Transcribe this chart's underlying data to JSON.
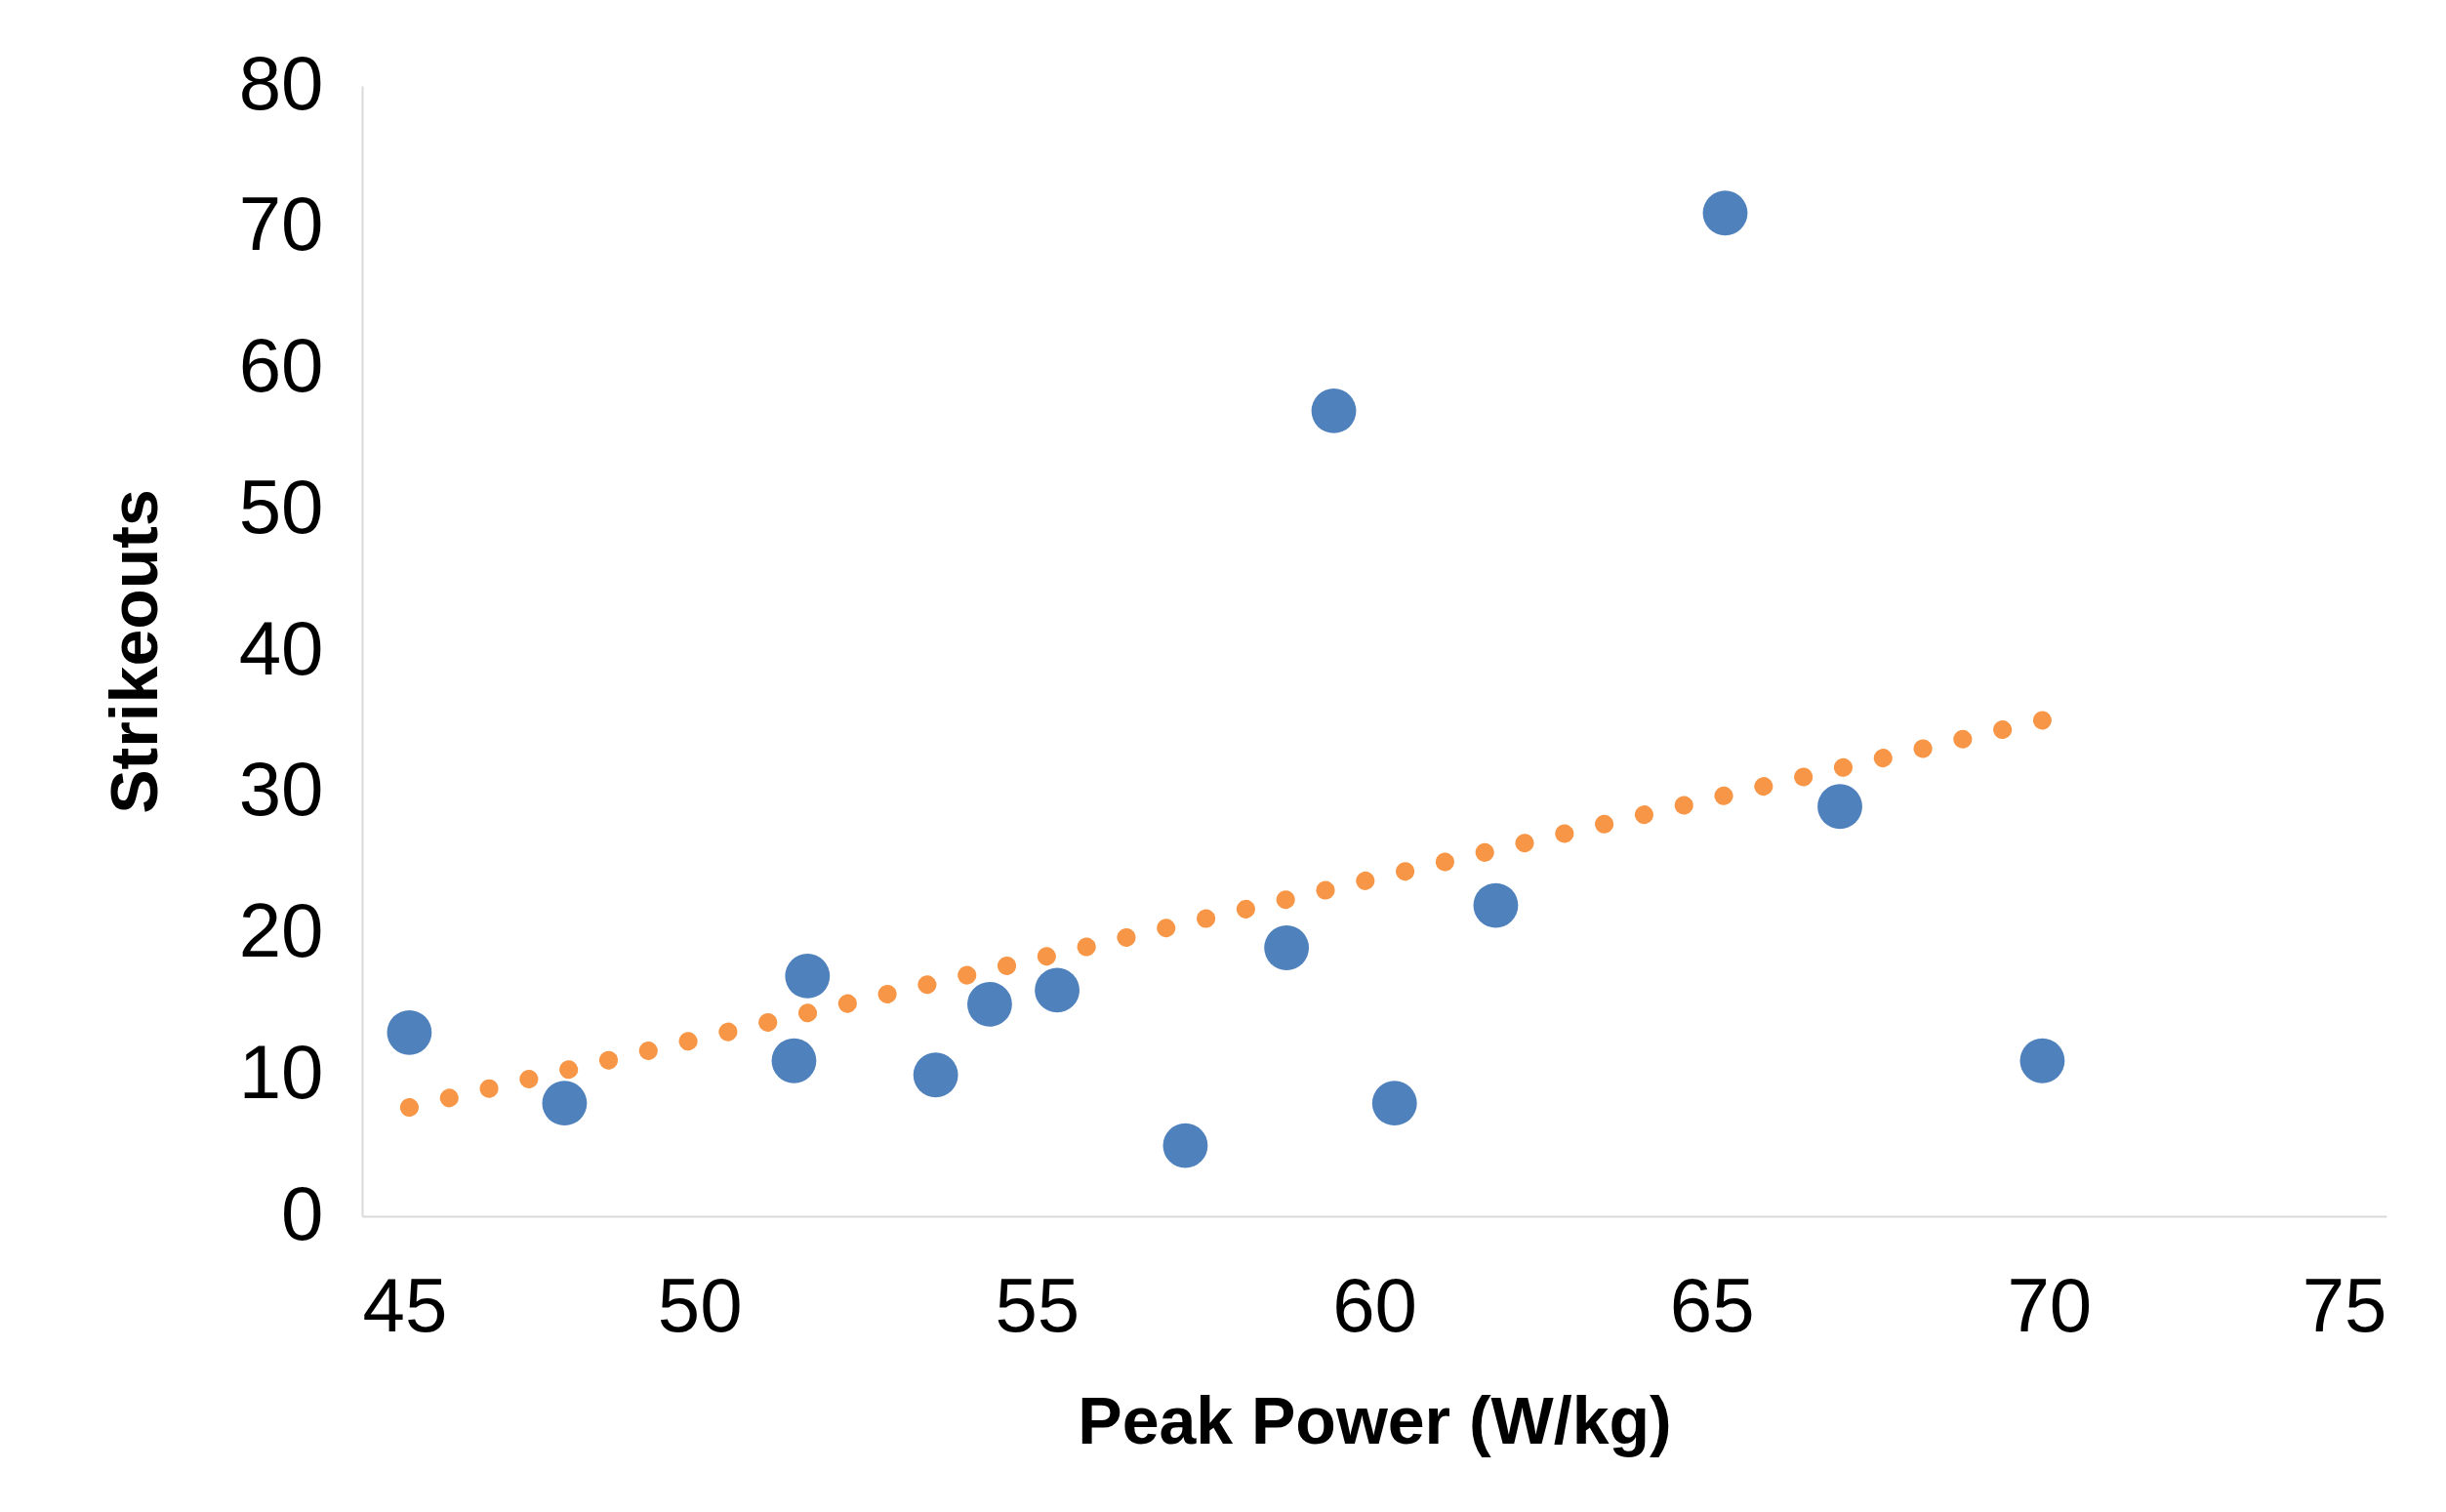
{
  "chart_data": {
    "type": "scatter",
    "xlabel": "Peak Power (W/kg)",
    "ylabel": "Strikeouts",
    "xlim": [
      45,
      75
    ],
    "xticks": [
      45,
      50,
      55,
      60,
      65,
      70,
      75
    ],
    "ylim": [
      0,
      80
    ],
    "yticks": [
      0,
      10,
      20,
      30,
      40,
      50,
      60,
      70,
      80
    ],
    "grid": false,
    "series": [
      {
        "marker": "circle",
        "color": "#4f81bd",
        "x": [
          45.7,
          48.0,
          51.6,
          51.4,
          53.5,
          54.3,
          55.3,
          57.2,
          58.7,
          59.4,
          60.3,
          61.8,
          65.2,
          66.9,
          69.9
        ],
        "values": [
          13,
          8,
          17,
          11,
          10,
          15,
          16,
          5,
          19,
          57,
          8,
          22,
          71,
          29,
          11
        ]
      },
      {
        "type": "line",
        "color": "#f79646",
        "line_style": "dotted",
        "x": [
          45.7,
          69.9
        ],
        "values": [
          7.7,
          35.1
        ]
      }
    ]
  }
}
